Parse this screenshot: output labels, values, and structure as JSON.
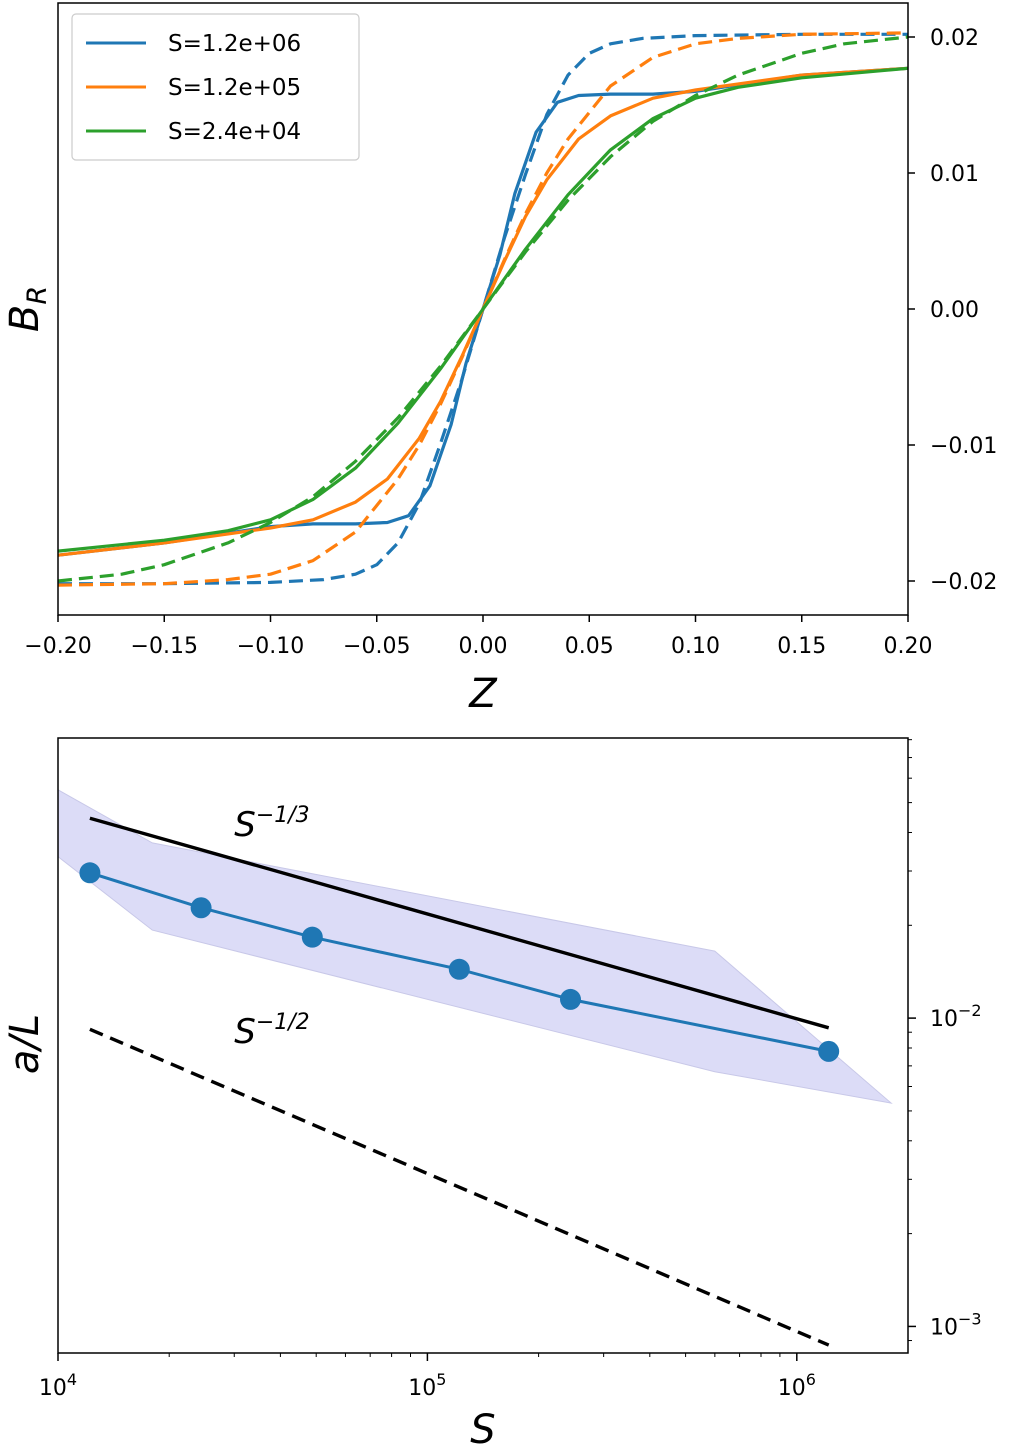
{
  "chart_data": [
    {
      "type": "line",
      "xlabel": "Z",
      "ylabel_base": "B",
      "ylabel_sub": "R",
      "xlim": [
        -0.2,
        0.2
      ],
      "ylim": [
        -0.0225,
        0.0225
      ],
      "x_ticks": [
        -0.2,
        -0.15,
        -0.1,
        -0.05,
        0.0,
        0.05,
        0.1,
        0.15,
        0.2
      ],
      "x_tick_labels": [
        "−0.20",
        "−0.15",
        "−0.10",
        "−0.05",
        "0.00",
        "0.05",
        "0.10",
        "0.15",
        "0.20"
      ],
      "y_ticks": [
        0.02,
        0.01,
        0.0,
        -0.01,
        -0.02
      ],
      "y_tick_labels": [
        "0.02",
        "0.01",
        "0.00",
        "−0.01",
        "−0.02"
      ],
      "y_axis_side": "right",
      "legend_position": "top-left",
      "series": [
        {
          "name": "S=1.2e+06",
          "color": "#1f77b4",
          "solid": {
            "x": [
              -0.2,
              -0.15,
              -0.1,
              -0.08,
              -0.06,
              -0.045,
              -0.035,
              -0.025,
              -0.015,
              -0.008,
              0.0,
              0.008,
              0.015,
              0.025,
              0.035,
              0.045,
              0.06,
              0.08,
              0.1,
              0.15,
              0.2
            ],
            "y": [
              -0.0181,
              -0.0172,
              -0.016,
              -0.0158,
              -0.0158,
              -0.0157,
              -0.0152,
              -0.013,
              -0.0085,
              -0.004,
              0.0,
              0.004,
              0.0085,
              0.013,
              0.0152,
              0.0157,
              0.0158,
              0.0158,
              0.016,
              0.0172,
              0.0177
            ]
          },
          "dashed": {
            "x": [
              -0.2,
              -0.15,
              -0.1,
              -0.075,
              -0.06,
              -0.05,
              -0.04,
              -0.03,
              -0.02,
              -0.01,
              0.0,
              0.01,
              0.02,
              0.03,
              0.04,
              0.05,
              0.06,
              0.075,
              0.1,
              0.15,
              0.2
            ],
            "y": [
              -0.0202,
              -0.0202,
              -0.0201,
              -0.0199,
              -0.0195,
              -0.0188,
              -0.0172,
              -0.0143,
              -0.0099,
              -0.0052,
              0.0,
              0.0052,
              0.0099,
              0.0143,
              0.0172,
              0.0188,
              0.0195,
              0.0199,
              0.0201,
              0.0202,
              0.0202
            ]
          }
        },
        {
          "name": "S=1.2e+05",
          "color": "#ff7f0e",
          "solid": {
            "x": [
              -0.2,
              -0.15,
              -0.1,
              -0.08,
              -0.06,
              -0.045,
              -0.03,
              -0.02,
              -0.01,
              0.0,
              0.01,
              0.02,
              0.03,
              0.045,
              0.06,
              0.08,
              0.1,
              0.15,
              0.2
            ],
            "y": [
              -0.0181,
              -0.0172,
              -0.0161,
              -0.0155,
              -0.0142,
              -0.0125,
              -0.0095,
              -0.0068,
              -0.0035,
              0.0,
              0.0035,
              0.0068,
              0.0095,
              0.0125,
              0.0142,
              0.0155,
              0.0161,
              0.0172,
              0.0177
            ]
          },
          "dashed": {
            "x": [
              -0.2,
              -0.15,
              -0.12,
              -0.1,
              -0.08,
              -0.06,
              -0.04,
              -0.03,
              -0.02,
              -0.01,
              0.0,
              0.01,
              0.02,
              0.03,
              0.04,
              0.06,
              0.08,
              0.1,
              0.12,
              0.15,
              0.2
            ],
            "y": [
              -0.0203,
              -0.0202,
              -0.0199,
              -0.0195,
              -0.0185,
              -0.0164,
              -0.0125,
              -0.01,
              -0.007,
              -0.0036,
              0.0,
              0.0036,
              0.007,
              0.01,
              0.0125,
              0.0164,
              0.0185,
              0.0195,
              0.0199,
              0.0202,
              0.0203
            ]
          }
        },
        {
          "name": "S=2.4e+04",
          "color": "#2ca02c",
          "solid": {
            "x": [
              -0.2,
              -0.15,
              -0.12,
              -0.1,
              -0.08,
              -0.06,
              -0.04,
              -0.02,
              0.0,
              0.02,
              0.04,
              0.06,
              0.08,
              0.1,
              0.12,
              0.15,
              0.2
            ],
            "y": [
              -0.0178,
              -0.017,
              -0.0163,
              -0.0155,
              -0.014,
              -0.0117,
              -0.0084,
              -0.0044,
              0.0,
              0.0044,
              0.0084,
              0.0117,
              0.014,
              0.0155,
              0.0163,
              0.017,
              0.0177
            ]
          },
          "dashed": {
            "x": [
              -0.2,
              -0.17,
              -0.15,
              -0.12,
              -0.1,
              -0.08,
              -0.06,
              -0.04,
              -0.02,
              0.0,
              0.02,
              0.04,
              0.06,
              0.08,
              0.1,
              0.12,
              0.15,
              0.17,
              0.2
            ],
            "y": [
              -0.02,
              -0.0195,
              -0.0188,
              -0.0172,
              -0.0157,
              -0.0138,
              -0.0112,
              -0.008,
              -0.0042,
              0.0,
              0.0042,
              0.008,
              0.0112,
              0.0138,
              0.0157,
              0.0172,
              0.0188,
              0.0195,
              0.02
            ]
          }
        }
      ]
    },
    {
      "type": "scatter",
      "xlabel": "S",
      "ylabel": "a/L",
      "x_scale": "log",
      "y_scale": "log",
      "xlim": [
        10000,
        2000000
      ],
      "ylim": [
        0.00082,
        0.081
      ],
      "x_ticks": [
        10000,
        100000,
        1000000
      ],
      "x_tick_labels": [
        {
          "base": "10",
          "exp": "4"
        },
        {
          "base": "10",
          "exp": "5"
        },
        {
          "base": "10",
          "exp": "6"
        }
      ],
      "y_ticks": [
        0.01,
        0.001
      ],
      "y_tick_labels": [
        {
          "base": "10",
          "exp": "−2"
        },
        {
          "base": "10",
          "exp": "−3"
        }
      ],
      "y_axis_side": "right",
      "series": [
        {
          "name": "a/L",
          "color": "#1f77b4",
          "x": [
            12200,
            24400,
            48800,
            122000,
            244000,
            1220000
          ],
          "y": [
            0.0296,
            0.0228,
            0.0183,
            0.0144,
            0.0115,
            0.0078
          ]
        }
      ],
      "band": {
        "color": "#dcdcf7",
        "x": [
          10000,
          18000,
          600000,
          1800000,
          600000,
          18000,
          10000
        ],
        "y": [
          0.055,
          0.037,
          0.0165,
          0.0053,
          0.0067,
          0.0193,
          0.0334
        ]
      },
      "reference_lines": [
        {
          "label_base": "S",
          "label_exp": "−1/3",
          "style": "solid",
          "x": [
            12200,
            1220000
          ],
          "y": [
            0.0445,
            0.0093
          ],
          "label_at": [
            30000,
            0.039
          ]
        },
        {
          "label_base": "S",
          "label_exp": "−1/2",
          "style": "dashed",
          "x": [
            12200,
            1220000
          ],
          "y": [
            0.0092,
            0.00087
          ],
          "label_at": [
            30000,
            0.0083
          ]
        }
      ]
    }
  ]
}
